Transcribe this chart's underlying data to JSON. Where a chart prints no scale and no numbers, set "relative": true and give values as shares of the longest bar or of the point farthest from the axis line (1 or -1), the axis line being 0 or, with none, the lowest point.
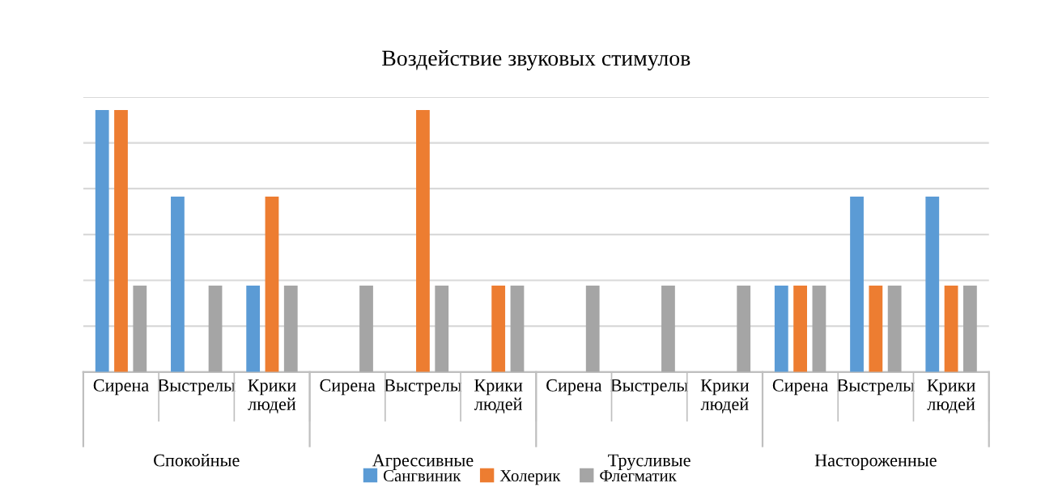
{
  "chart_data": {
    "type": "bar",
    "title": "Воздействие звуковых стимулов",
    "relative": true,
    "grid": "y",
    "legend": "bottom",
    "categories": [
      "Сирена",
      "Выстрелы",
      "Крики людей",
      "Сирена",
      "Выстрелы",
      "Крики людей",
      "Сирена",
      "Выстрелы",
      "Крики людей",
      "Сирена",
      "Выстрелы",
      "Крики людей"
    ],
    "annotations": [
      "Спокойные",
      "Агрессивные",
      "Трусливые",
      "Настороженные"
    ],
    "series": [
      {
        "name": "Сангвиник",
        "color": "#5b9bd5",
        "values": [
          1,
          0.67,
          0.33,
          0,
          0,
          0,
          0,
          0,
          0,
          0.33,
          0.67,
          0.67
        ]
      },
      {
        "name": "Холерик",
        "color": "#ed7d31",
        "values": [
          1,
          0,
          0.67,
          0,
          1,
          0.33,
          0,
          0,
          0,
          0.33,
          0.33,
          0.33
        ]
      },
      {
        "name": "Флегматик",
        "color": "#a5a5a5",
        "values": [
          0.33,
          0.33,
          0.33,
          0.33,
          0.33,
          0.33,
          0.33,
          0.33,
          0.33,
          0.33,
          0.33,
          0.33
        ]
      }
    ]
  }
}
